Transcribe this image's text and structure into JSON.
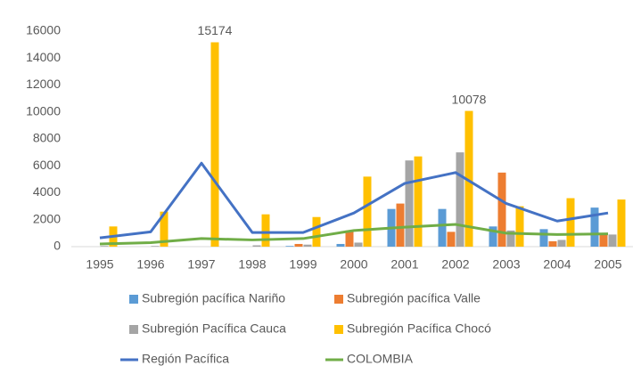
{
  "chart_data": {
    "type": "bar_line",
    "categories": [
      "1995",
      "1996",
      "1997",
      "1998",
      "1999",
      "2000",
      "2001",
      "2002",
      "2003",
      "2004",
      "2005"
    ],
    "ylim": [
      0,
      16000
    ],
    "yticks": [
      0,
      2000,
      4000,
      6000,
      8000,
      10000,
      12000,
      14000,
      16000
    ],
    "grid": false,
    "legend": "bottom",
    "series": [
      {
        "name": "Subregión pacífica Nariño",
        "color": "#5b9bd5",
        "kind": "bar",
        "values": [
          0,
          0,
          0,
          0,
          50,
          200,
          2800,
          2800,
          1500,
          1300,
          2900
        ]
      },
      {
        "name": "Subregión pacífica Valle",
        "color": "#ed7d31",
        "kind": "bar",
        "values": [
          0,
          0,
          0,
          0,
          200,
          1200,
          3200,
          1100,
          5500,
          400,
          1000
        ]
      },
      {
        "name": "Subregión Pacífica Cauca",
        "color": "#a5a5a5",
        "kind": "bar",
        "values": [
          50,
          50,
          0,
          100,
          150,
          300,
          6400,
          7000,
          1200,
          500,
          900
        ]
      },
      {
        "name": "Subregión Pacífica Chocó",
        "color": "#ffc000",
        "kind": "bar",
        "values": [
          1500,
          2600,
          15174,
          2400,
          2200,
          5200,
          6700,
          10078,
          3000,
          3600,
          3500
        ],
        "value_labels": [
          null,
          null,
          "15174",
          null,
          null,
          null,
          null,
          "10078",
          null,
          null,
          null
        ]
      },
      {
        "name": "Región Pacífica",
        "color": "#4472c4",
        "kind": "line",
        "values": [
          650,
          1100,
          6200,
          1050,
          1050,
          2500,
          4700,
          5500,
          3200,
          1900,
          2500
        ]
      },
      {
        "name": "COLOMBIA",
        "color": "#70ad47",
        "kind": "line",
        "values": [
          200,
          300,
          600,
          500,
          600,
          1200,
          1450,
          1650,
          1000,
          900,
          950
        ]
      }
    ]
  }
}
